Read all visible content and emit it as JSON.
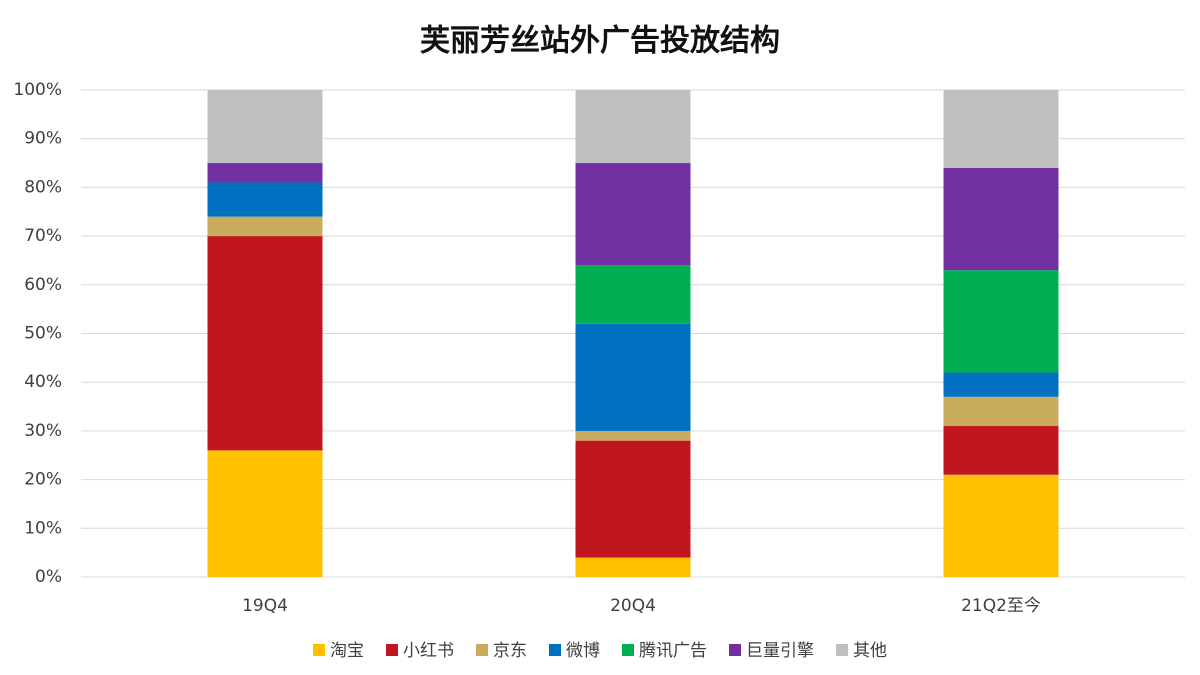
{
  "chart_data": {
    "type": "stacked_bar",
    "title": "芙丽芳丝站外广告投放结构",
    "categories": [
      "19Q4",
      "20Q4",
      "21Q2至今"
    ],
    "series": [
      {
        "name": "淘宝",
        "color": "#ffc000",
        "values": [
          26,
          4,
          21
        ]
      },
      {
        "name": "小红书",
        "color": "#c0161f",
        "values": [
          44,
          24,
          10
        ]
      },
      {
        "name": "京东",
        "color": "#c9ab5e",
        "values": [
          4,
          2,
          6
        ]
      },
      {
        "name": "微博",
        "color": "#0070c0",
        "values": [
          7,
          22,
          5
        ]
      },
      {
        "name": "腾讯广告",
        "color": "#00b050",
        "values": [
          0,
          12,
          21
        ]
      },
      {
        "name": "巨量引擎",
        "color": "#7030a0",
        "values": [
          4,
          21,
          21
        ]
      },
      {
        "name": "其他",
        "color": "#bfbfbf",
        "values": [
          15,
          15,
          16
        ]
      }
    ],
    "ylim": [
      0,
      100
    ],
    "yticks": [
      {
        "value": 0,
        "label": "0%"
      },
      {
        "value": 10,
        "label": "10%"
      },
      {
        "value": 20,
        "label": "20%"
      },
      {
        "value": 30,
        "label": "30%"
      },
      {
        "value": 40,
        "label": "40%"
      },
      {
        "value": 50,
        "label": "50%"
      },
      {
        "value": 60,
        "label": "60%"
      },
      {
        "value": 70,
        "label": "70%"
      },
      {
        "value": 80,
        "label": "80%"
      },
      {
        "value": 90,
        "label": "90%"
      },
      {
        "value": 100,
        "label": "100%"
      }
    ],
    "grid": true,
    "legend": "bottom"
  }
}
